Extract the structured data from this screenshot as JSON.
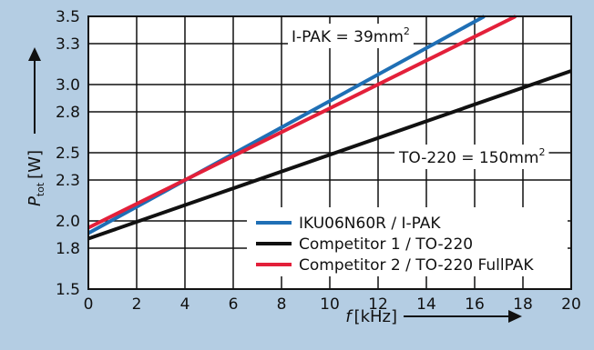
{
  "chart_data": {
    "type": "line",
    "xlabel_symbol": "f",
    "xlabel_unit": "[kHz]",
    "ylabel_symbol": "P",
    "ylabel_subscript": "tot",
    "ylabel_unit": "[W]",
    "xlim": [
      0,
      20
    ],
    "ylim": [
      1.5,
      3.5
    ],
    "x_ticks": [
      0,
      2,
      4,
      6,
      8,
      10,
      12,
      14,
      16,
      18,
      20
    ],
    "y_ticks": [
      1.5,
      1.8,
      2.0,
      2.3,
      2.5,
      2.8,
      3.0,
      3.3,
      3.5
    ],
    "y_tick_labels": [
      "1.5",
      "1.8",
      "2.0",
      "2.3",
      "2.5",
      "2.8",
      "3.0",
      "3.3",
      "3.5"
    ],
    "grid": true,
    "legend_position": "bottom-right",
    "series": [
      {
        "name": "IKU06N60R / I-PAK",
        "color": "#1f6fb5",
        "x": [
          0,
          16.4
        ],
        "y": [
          1.91,
          3.5
        ]
      },
      {
        "name": "Competitor 1 / TO-220",
        "color": "#111111",
        "x": [
          0,
          20
        ],
        "y": [
          1.87,
          3.1
        ]
      },
      {
        "name": "Competitor 2 / TO-220 FullPAK",
        "color": "#e3203a",
        "x": [
          0,
          17.7
        ],
        "y": [
          1.95,
          3.5
        ]
      }
    ],
    "annotations": [
      {
        "text": "I-PAK = 39mm",
        "sup": "2",
        "x": 8.1,
        "y": 3.38
      },
      {
        "text": "TO-220 = 150mm",
        "sup": "2",
        "x": 12.9,
        "y": 2.47
      }
    ]
  }
}
